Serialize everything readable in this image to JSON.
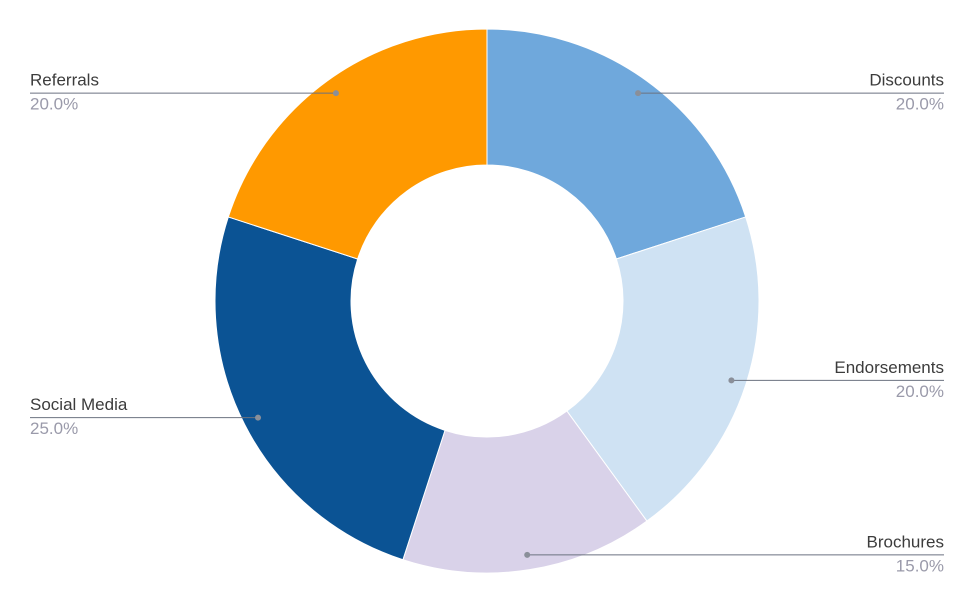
{
  "chart_data": {
    "type": "pie",
    "categories": [
      "Discounts",
      "Endorsements",
      "Brochures",
      "Social Media",
      "Referrals"
    ],
    "values": [
      20,
      20,
      15,
      25,
      20
    ],
    "value_labels": [
      "20.0%",
      "20.0%",
      "15.0%",
      "25.0%",
      "20.0%"
    ],
    "colors": [
      "#6fa8dc",
      "#cfe2f3",
      "#d9d2e9",
      "#0b5394",
      "#ff9900"
    ],
    "donut": true
  }
}
